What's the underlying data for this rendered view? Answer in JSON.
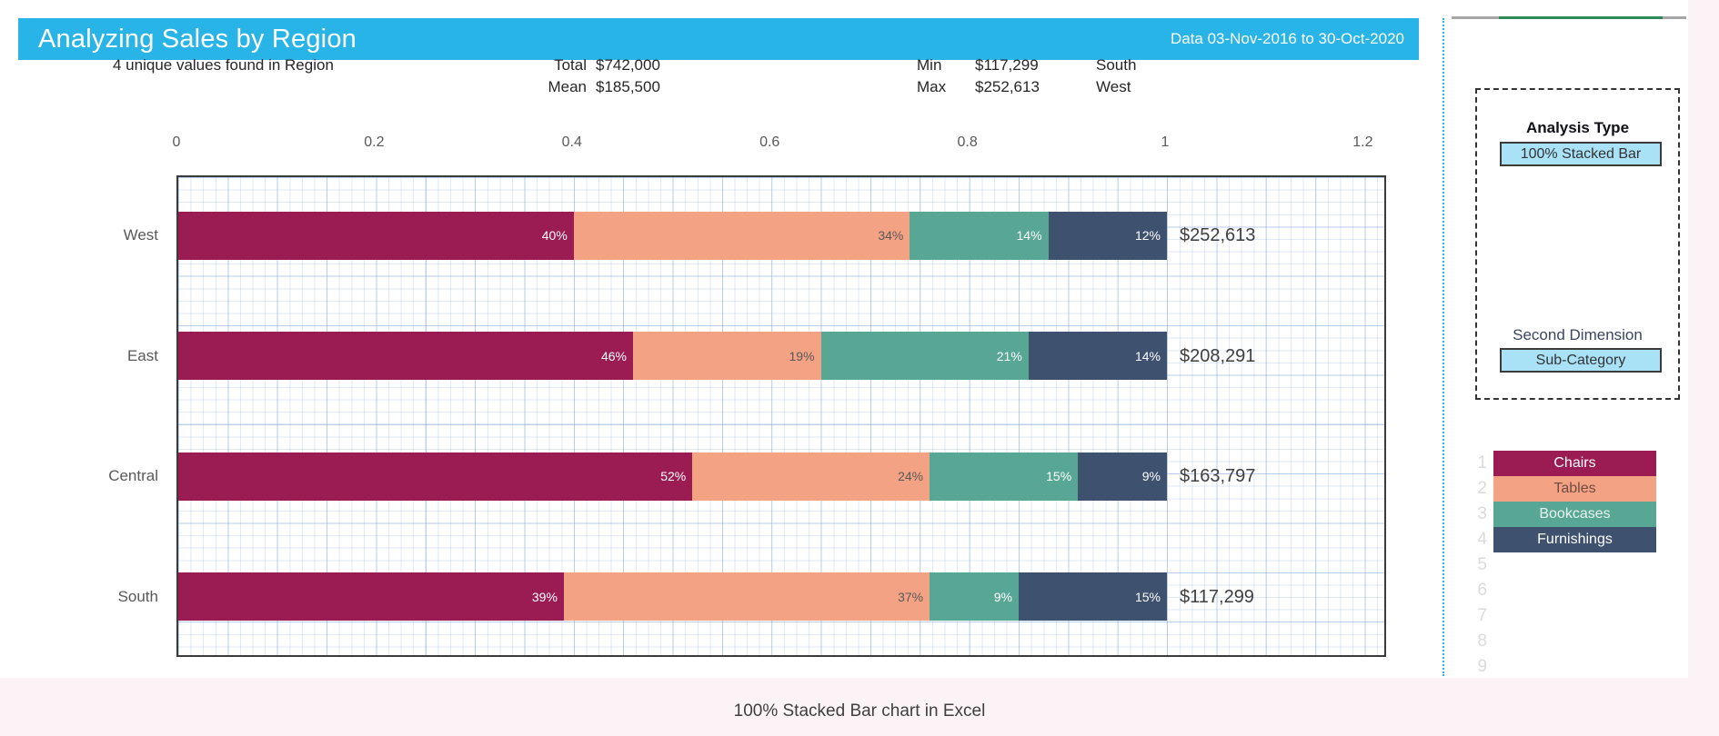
{
  "header": {
    "title": "Analyzing Sales by Region",
    "date_range": "Data 03-Nov-2016 to 30-Oct-2020"
  },
  "stats": {
    "unique": "4 unique values found in Region",
    "total_label": "Total",
    "total_value": "$742,000",
    "mean_label": "Mean",
    "mean_value": "$185,500",
    "min_label": "Min",
    "min_value": "$117,299",
    "min_region": "South",
    "max_label": "Max",
    "max_value": "$252,613",
    "max_region": "West"
  },
  "chart_data": {
    "type": "bar",
    "variant": "100% stacked horizontal bar",
    "title": "Analyzing Sales by Region",
    "categories": [
      "West",
      "East",
      "Central",
      "South"
    ],
    "series": [
      {
        "name": "Chairs",
        "color": "#9B1B53",
        "label_color": "#ffffff",
        "legend_text_color": "#ffffff",
        "values": [
          40,
          46,
          52,
          39
        ]
      },
      {
        "name": "Tables",
        "color": "#F4A284",
        "label_color": "#595959",
        "legend_text_color": "#6F4B41",
        "values": [
          34,
          19,
          24,
          37
        ]
      },
      {
        "name": "Bookcases",
        "color": "#57A794",
        "label_color": "#ffffff",
        "legend_text_color": "#EAF4F0",
        "values": [
          14,
          21,
          15,
          9
        ]
      },
      {
        "name": "Furnishings",
        "color": "#3E516E",
        "label_color": "#ffffff",
        "legend_text_color": "#ffffff",
        "values": [
          12,
          14,
          9,
          15
        ]
      }
    ],
    "totals": [
      "$252,613",
      "$208,291",
      "$163,797",
      "$117,299"
    ],
    "x_ticks": [
      "0",
      "0.2",
      "0.4",
      "0.6",
      "0.8",
      "1",
      "1.2"
    ],
    "xlim": [
      0,
      1.2
    ],
    "grid": "fine blue graph-paper grid",
    "legend_position": "right panel rows 1-4",
    "value_labels": "percent inside segment, dollar total at bar end"
  },
  "panel": {
    "analysis_type_label": "Analysis Type",
    "analysis_type_value": "100% Stacked Bar",
    "second_dimension_label": "Second Dimension",
    "second_dimension_value": "Sub-Category",
    "legend_rows": [
      {
        "num": "1",
        "label": "Chairs"
      },
      {
        "num": "2",
        "label": "Tables"
      },
      {
        "num": "3",
        "label": "Bookcases"
      },
      {
        "num": "4",
        "label": "Furnishings"
      },
      {
        "num": "5",
        "label": ""
      },
      {
        "num": "6",
        "label": ""
      },
      {
        "num": "7",
        "label": ""
      },
      {
        "num": "8",
        "label": ""
      },
      {
        "num": "9",
        "label": ""
      }
    ]
  },
  "caption": "100% Stacked Bar chart in Excel",
  "colors": {
    "header_bg": "#29B4E8",
    "selector_fill": "#A9E1F7",
    "plot_border": "#3B3B3B",
    "accent_green_line": "#2E8B57",
    "accent_gray_line": "#A6A6A6",
    "page_bg": "#FBF3F5"
  }
}
